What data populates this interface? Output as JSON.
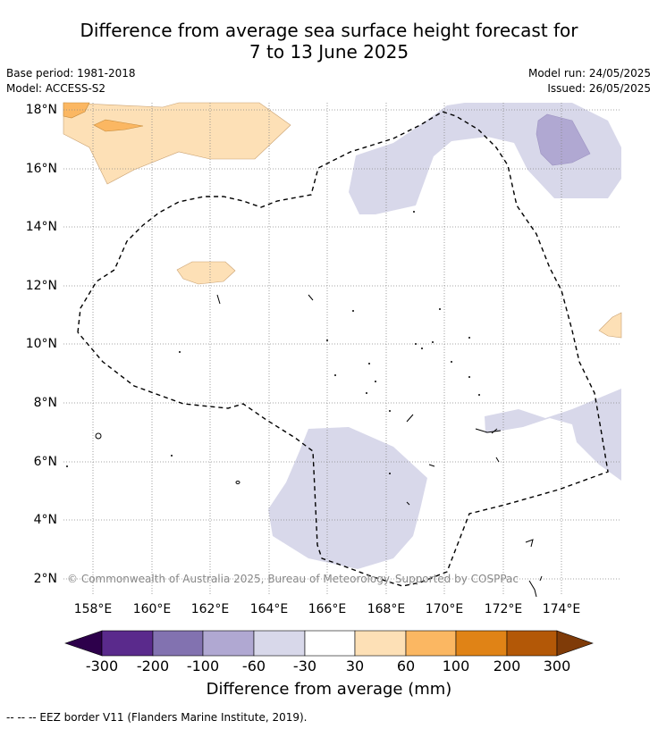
{
  "title_line1": "Difference from average sea surface height forecast for",
  "title_line2": "7 to 13 June 2025",
  "base_period": "Base period: 1981-2018",
  "model": "Model: ACCESS-S2",
  "model_run": "Model run: 24/05/2025",
  "issued": "Issued: 26/05/2025",
  "copyright": "© Commonwealth of Australia 2025, Bureau of Meteorology. Supported by COSPPac",
  "lat_labels": [
    "18°N",
    "16°N",
    "14°N",
    "12°N",
    "10°N",
    "8°N",
    "6°N",
    "4°N",
    "2°N"
  ],
  "lon_labels": [
    "158°E",
    "160°E",
    "162°E",
    "164°E",
    "166°E",
    "168°E",
    "170°E",
    "172°E",
    "174°E"
  ],
  "colorbar": {
    "tick_labels": [
      "-300",
      "-200",
      "-100",
      "-60",
      "-30",
      "30",
      "60",
      "100",
      "200",
      "300"
    ],
    "title": "Difference from average (mm)",
    "colors": {
      "lt_-300": "#2d004b",
      "-300_-200": "#5a2a8c",
      "-200_-100": "#8272b0",
      "-100_-60": "#b0a8d2",
      "-60_-30": "#d8d8ea",
      "-30_30": "#ffffff",
      "30_60": "#fde0b6",
      "60_100": "#fbb762",
      "100_200": "#e08316",
      "200_300": "#b35807",
      "gt_300": "#7f3b08"
    }
  },
  "footer": "-- -- -- EEZ border V11 (Flanders Marine Institute, 2019)."
}
